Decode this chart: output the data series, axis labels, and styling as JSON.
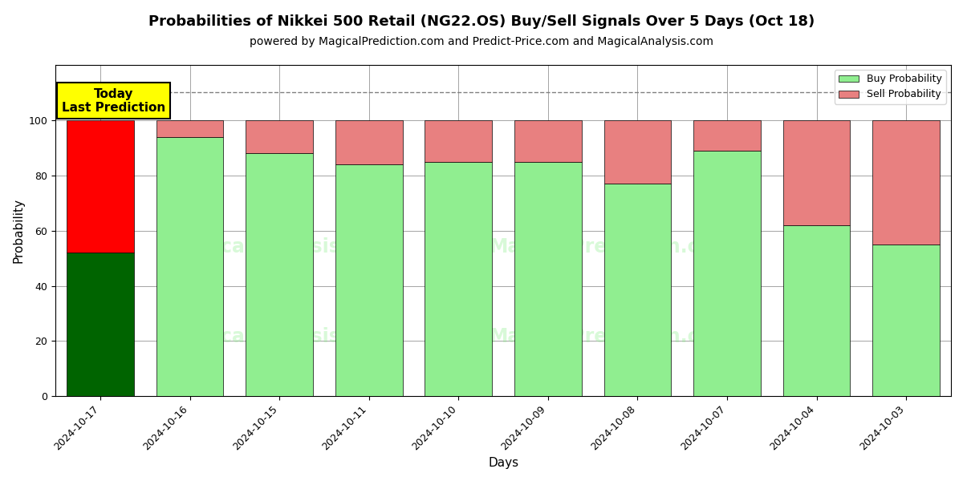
{
  "title": "Probabilities of Nikkei 500 Retail (NG22.OS) Buy/Sell Signals Over 5 Days (Oct 18)",
  "subtitle": "powered by MagicalPrediction.com and Predict-Price.com and MagicalAnalysis.com",
  "xlabel": "Days",
  "ylabel": "Probability",
  "dates": [
    "2024-10-17",
    "2024-10-16",
    "2024-10-15",
    "2024-10-11",
    "2024-10-10",
    "2024-10-09",
    "2024-10-08",
    "2024-10-07",
    "2024-10-04",
    "2024-10-03"
  ],
  "buy_probs": [
    52,
    94,
    88,
    84,
    85,
    85,
    77,
    89,
    62,
    55
  ],
  "sell_probs": [
    48,
    6,
    12,
    16,
    15,
    15,
    23,
    11,
    38,
    45
  ],
  "today_buy_color": "#006400",
  "today_sell_color": "#FF0000",
  "normal_buy_color": "#90EE90",
  "normal_sell_color": "#E88080",
  "today_annotation_text": "Today\nLast Prediction",
  "today_annotation_bg": "#FFFF00",
  "legend_buy_label": "Buy Probability",
  "legend_sell_label": "Sell Probability",
  "ylim": [
    0,
    120
  ],
  "yticks": [
    0,
    20,
    40,
    60,
    80,
    100
  ],
  "dashed_line_y": 110,
  "background_color": "#ffffff",
  "title_fontsize": 13,
  "subtitle_fontsize": 10,
  "axis_label_fontsize": 11,
  "tick_fontsize": 9
}
